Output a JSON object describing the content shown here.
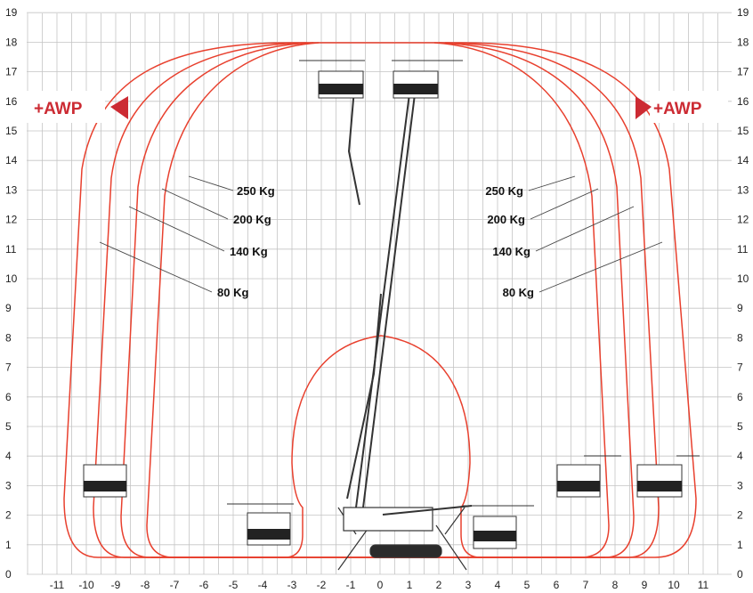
{
  "chart_data": {
    "type": "working-envelope",
    "x_ticks": [
      "-11",
      "-10",
      "-9",
      "-8",
      "-7",
      "-6",
      "-5",
      "-4",
      "-3",
      "-2",
      "-1",
      "0",
      "1",
      "2",
      "3",
      "4",
      "5",
      "6",
      "7",
      "8",
      "9",
      "10",
      "11"
    ],
    "y_ticks": [
      "0",
      "1",
      "2",
      "3",
      "4",
      "5",
      "6",
      "7",
      "8",
      "9",
      "10",
      "11",
      "12",
      "13",
      "14",
      "15",
      "16",
      "17",
      "18",
      "19"
    ],
    "xlim": [
      -11.5,
      11.5
    ],
    "ylim": [
      0,
      19
    ],
    "grid": true,
    "envelope_color": "#e8402e",
    "accent_color": "#cc2b33",
    "loads_left": [
      "250 Kg",
      "200 Kg",
      "140 Kg",
      "80 Kg"
    ],
    "loads_right": [
      "250 Kg",
      "200 Kg",
      "140 Kg",
      "80 Kg"
    ],
    "awp_left": "+AWP",
    "awp_right": "+AWP",
    "envelopes": [
      {
        "load": "250 Kg",
        "max_height": 18,
        "max_outreach": 8
      },
      {
        "load": "200 Kg",
        "max_height": 18,
        "max_outreach": 8.5
      },
      {
        "load": "140 Kg",
        "max_height": 18,
        "max_outreach": 9.5
      },
      {
        "load": "80 Kg",
        "max_height": 18,
        "max_outreach": 10.5
      }
    ],
    "inner_envelope_max_height": 8.2
  }
}
